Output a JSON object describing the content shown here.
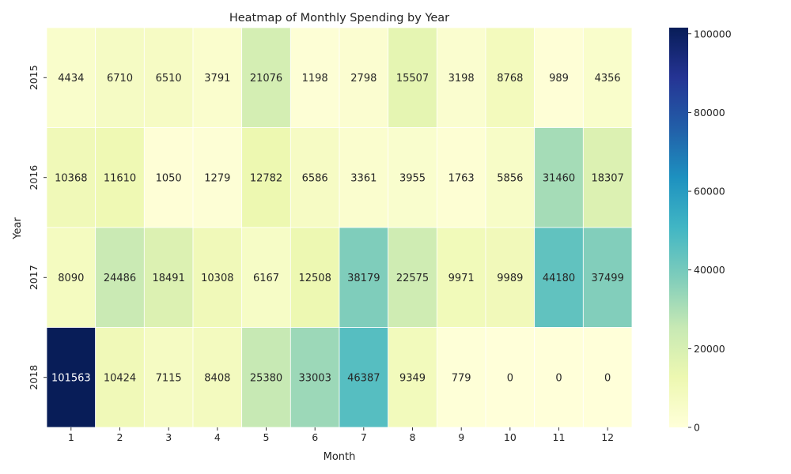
{
  "chart_data": {
    "type": "heatmap",
    "title": "Heatmap of Monthly Spending by Year",
    "xlabel": "Month",
    "ylabel": "Year",
    "x_categories": [
      "1",
      "2",
      "3",
      "4",
      "5",
      "6",
      "7",
      "8",
      "9",
      "10",
      "11",
      "12"
    ],
    "y_categories": [
      "2015",
      "2016",
      "2017",
      "2018"
    ],
    "values": [
      [
        4434,
        6710,
        6510,
        3791,
        21076,
        1198,
        2798,
        15507,
        3198,
        8768,
        989,
        4356
      ],
      [
        10368,
        11610,
        1050,
        1279,
        12782,
        6586,
        3361,
        3955,
        1763,
        5856,
        31460,
        18307
      ],
      [
        8090,
        24486,
        18491,
        10308,
        6167,
        12508,
        38179,
        22575,
        9971,
        9989,
        44180,
        37499
      ],
      [
        101563,
        10424,
        7115,
        8408,
        25380,
        33003,
        46387,
        9349,
        779,
        0,
        0,
        0
      ]
    ],
    "colorbar": {
      "colormap": "YlGnBu",
      "range": [
        0,
        101563
      ],
      "ticks": [
        0,
        20000,
        40000,
        60000,
        80000,
        100000
      ],
      "tick_labels": [
        "0",
        "20000",
        "40000",
        "60000",
        "80000",
        "100000"
      ]
    },
    "annotated": true,
    "grid": false
  }
}
